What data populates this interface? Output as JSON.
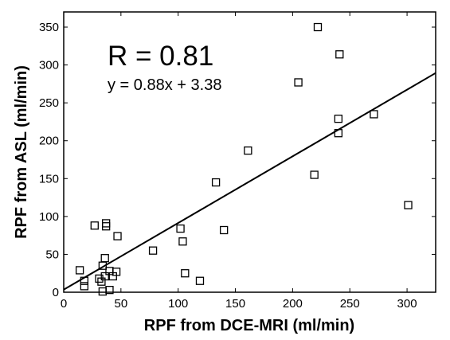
{
  "chart_data": {
    "type": "scatter",
    "xlabel": "RPF from DCE-MRI (ml/min)",
    "ylabel": "RPF from ASL (ml/min)",
    "xlim": [
      0,
      325
    ],
    "ylim": [
      0,
      370
    ],
    "xticks": [
      0,
      50,
      100,
      150,
      200,
      250,
      300
    ],
    "yticks": [
      0,
      50,
      100,
      150,
      200,
      250,
      300,
      350
    ],
    "grid": false,
    "marker": "open-square",
    "points": [
      {
        "x": 14,
        "y": 29
      },
      {
        "x": 18,
        "y": 8
      },
      {
        "x": 18,
        "y": 15
      },
      {
        "x": 27,
        "y": 88
      },
      {
        "x": 31,
        "y": 18
      },
      {
        "x": 33,
        "y": 14
      },
      {
        "x": 34,
        "y": 35
      },
      {
        "x": 34,
        "y": 1
      },
      {
        "x": 36,
        "y": 45
      },
      {
        "x": 36,
        "y": 21
      },
      {
        "x": 37,
        "y": 91
      },
      {
        "x": 37,
        "y": 87
      },
      {
        "x": 40,
        "y": 3
      },
      {
        "x": 40,
        "y": 28
      },
      {
        "x": 43,
        "y": 21
      },
      {
        "x": 46,
        "y": 27
      },
      {
        "x": 47,
        "y": 74
      },
      {
        "x": 78,
        "y": 55
      },
      {
        "x": 102,
        "y": 84
      },
      {
        "x": 104,
        "y": 67
      },
      {
        "x": 106,
        "y": 25
      },
      {
        "x": 119,
        "y": 15
      },
      {
        "x": 133,
        "y": 145
      },
      {
        "x": 140,
        "y": 82
      },
      {
        "x": 161,
        "y": 187
      },
      {
        "x": 205,
        "y": 277
      },
      {
        "x": 219,
        "y": 155
      },
      {
        "x": 222,
        "y": 350
      },
      {
        "x": 240,
        "y": 229
      },
      {
        "x": 240,
        "y": 210
      },
      {
        "x": 241,
        "y": 314
      },
      {
        "x": 271,
        "y": 235
      },
      {
        "x": 301,
        "y": 115
      }
    ],
    "fit": {
      "slope": 0.88,
      "intercept": 3.38
    },
    "annotations": {
      "r": "R = 0.81",
      "equation": "y = 0.88x + 3.38"
    }
  }
}
